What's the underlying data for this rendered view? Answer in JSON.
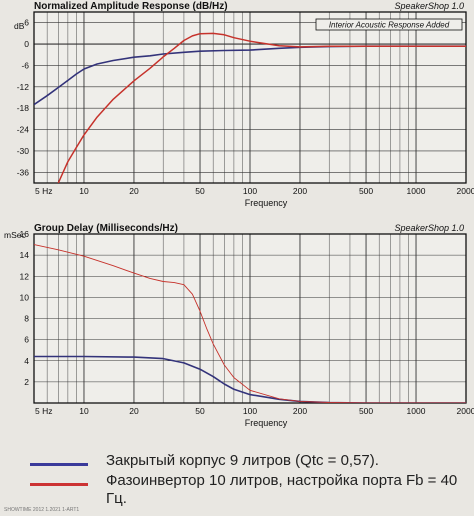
{
  "chart_data": [
    {
      "type": "line",
      "title": "Normalized Amplitude Response (dB/Hz)",
      "brand": "SpeakerShop 1.0",
      "annotation": "Interior Acoustic Response Added",
      "xlabel": "Frequency",
      "ylabel": "dB",
      "xscale": "log",
      "xlim": [
        5,
        2000
      ],
      "ylim": [
        -39,
        9
      ],
      "grid": true,
      "x_tick_labels": [
        {
          "value": 5,
          "label": "5 Hz"
        },
        {
          "value": 10,
          "label": "10"
        },
        {
          "value": 20,
          "label": "20"
        },
        {
          "value": 50,
          "label": "50"
        },
        {
          "value": 100,
          "label": "100"
        },
        {
          "value": 200,
          "label": "200"
        },
        {
          "value": 500,
          "label": "500"
        },
        {
          "value": 1000,
          "label": "1000"
        },
        {
          "value": 2000,
          "label": "2000"
        }
      ],
      "y_ticks": [
        6,
        0,
        -6,
        -12,
        -18,
        -24,
        -30,
        -36
      ],
      "series": [
        {
          "color": "#33337a",
          "points": [
            [
              5,
              -17
            ],
            [
              6,
              -14.5
            ],
            [
              7,
              -12.2
            ],
            [
              8,
              -10.2
            ],
            [
              9,
              -8.4
            ],
            [
              10,
              -7
            ],
            [
              12,
              -5.6
            ],
            [
              15,
              -4.6
            ],
            [
              20,
              -3.7
            ],
            [
              25,
              -3.3
            ],
            [
              30,
              -2.8
            ],
            [
              40,
              -2.3
            ],
            [
              50,
              -2
            ],
            [
              70,
              -1.8
            ],
            [
              100,
              -1.7
            ],
            [
              150,
              -1.2
            ],
            [
              200,
              -0.9
            ],
            [
              300,
              -0.7
            ],
            [
              500,
              -0.6
            ],
            [
              1000,
              -0.6
            ],
            [
              2000,
              -0.6
            ]
          ]
        },
        {
          "color": "#c6322b",
          "points": [
            [
              7,
              -39
            ],
            [
              8,
              -33
            ],
            [
              9,
              -29
            ],
            [
              10,
              -25.5
            ],
            [
              12,
              -20.5
            ],
            [
              15,
              -15.5
            ],
            [
              20,
              -10.3
            ],
            [
              25,
              -6.8
            ],
            [
              30,
              -3.6
            ],
            [
              35,
              -1.2
            ],
            [
              40,
              1
            ],
            [
              45,
              2.3
            ],
            [
              50,
              2.9
            ],
            [
              60,
              3
            ],
            [
              70,
              2.6
            ],
            [
              80,
              1.8
            ],
            [
              100,
              0.8
            ],
            [
              150,
              -0.5
            ],
            [
              200,
              -0.8
            ],
            [
              300,
              -0.6
            ],
            [
              500,
              -0.6
            ],
            [
              1000,
              -0.6
            ],
            [
              2000,
              -0.6
            ]
          ]
        }
      ]
    },
    {
      "type": "line",
      "title": "Group Delay (Milliseconds/Hz)",
      "brand": "SpeakerShop 1.0",
      "xlabel": "Frequency",
      "ylabel": "mSec",
      "xscale": "log",
      "xlim": [
        5,
        2000
      ],
      "ylim": [
        0,
        16
      ],
      "grid": true,
      "x_tick_labels": [
        {
          "value": 5,
          "label": "5 Hz"
        },
        {
          "value": 10,
          "label": "10"
        },
        {
          "value": 20,
          "label": "20"
        },
        {
          "value": 50,
          "label": "50"
        },
        {
          "value": 100,
          "label": "100"
        },
        {
          "value": 200,
          "label": "200"
        },
        {
          "value": 500,
          "label": "500"
        },
        {
          "value": 1000,
          "label": "1000"
        },
        {
          "value": 2000,
          "label": "2000"
        }
      ],
      "y_ticks": [
        16,
        14,
        12,
        10,
        8,
        6,
        4,
        2
      ],
      "series": [
        {
          "color": "#33337a",
          "points": [
            [
              5,
              4.4
            ],
            [
              10,
              4.4
            ],
            [
              20,
              4.35
            ],
            [
              30,
              4.2
            ],
            [
              40,
              3.8
            ],
            [
              50,
              3.2
            ],
            [
              60,
              2.5
            ],
            [
              70,
              1.8
            ],
            [
              80,
              1.3
            ],
            [
              100,
              0.8
            ],
            [
              150,
              0.35
            ],
            [
              200,
              0.15
            ],
            [
              300,
              0.05
            ],
            [
              500,
              0
            ],
            [
              2000,
              0
            ]
          ]
        },
        {
          "color": "#c6322b",
          "points": [
            [
              5,
              15
            ],
            [
              7,
              14.5
            ],
            [
              10,
              13.9
            ],
            [
              15,
              13
            ],
            [
              20,
              12.3
            ],
            [
              25,
              11.8
            ],
            [
              30,
              11.5
            ],
            [
              35,
              11.4
            ],
            [
              40,
              11.2
            ],
            [
              45,
              10.3
            ],
            [
              50,
              8.7
            ],
            [
              55,
              7
            ],
            [
              60,
              5.6
            ],
            [
              70,
              3.6
            ],
            [
              80,
              2.4
            ],
            [
              100,
              1.2
            ],
            [
              150,
              0.4
            ],
            [
              200,
              0.15
            ],
            [
              300,
              0.05
            ],
            [
              500,
              0
            ],
            [
              2000,
              0
            ]
          ]
        }
      ]
    }
  ],
  "legend": [
    {
      "color": "#3a3a9a",
      "text": "Закрытый корпус 9 литров (Qtc = 0,57)."
    },
    {
      "color": "#cc3333",
      "text": "Фазоинвертор 10 литров, настройка порта Fb = 40 Гц."
    }
  ],
  "footer": "SHOWTIME 2012 1.2021 1-ART1"
}
